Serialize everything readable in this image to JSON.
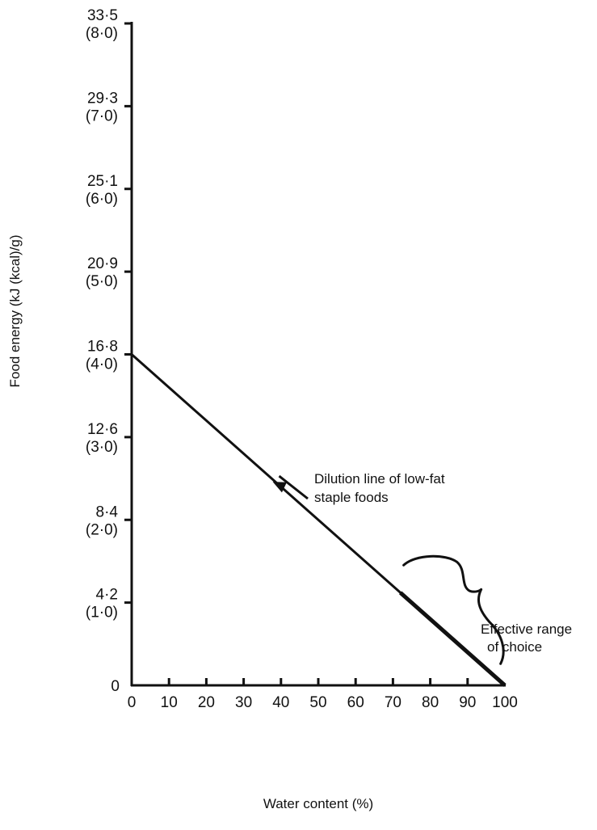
{
  "chart_data": {
    "type": "line",
    "title": "",
    "xlabel": "Water content (%)",
    "ylabel": "Food energy (kJ (kcal)/g)",
    "xlim": [
      0,
      100
    ],
    "ylim": [
      0,
      8
    ],
    "x_ticks": [
      0,
      10,
      20,
      30,
      40,
      50,
      60,
      70,
      80,
      90,
      100
    ],
    "x_tick_labels": [
      "0",
      "10",
      "20",
      "30",
      "40",
      "50",
      "60",
      "70",
      "80",
      "90",
      "100"
    ],
    "y_ticks": [
      {
        "value": 0,
        "kj": "0",
        "kcal": ""
      },
      {
        "value": 1,
        "kj": "4·2",
        "kcal": "(1·0)"
      },
      {
        "value": 2,
        "kj": "8·4",
        "kcal": "(2·0)"
      },
      {
        "value": 3,
        "kj": "12·6",
        "kcal": "(3·0)"
      },
      {
        "value": 4,
        "kj": "16·8",
        "kcal": "(4·0)"
      },
      {
        "value": 5,
        "kj": "20·9",
        "kcal": "(5·0)"
      },
      {
        "value": 6,
        "kj": "25·1",
        "kcal": "(6·0)"
      },
      {
        "value": 7,
        "kj": "29·3",
        "kcal": "(7·0)"
      },
      {
        "value": 8,
        "kj": "33·5",
        "kcal": "(8·0)"
      }
    ],
    "grid": false,
    "series": [
      {
        "x": [
          0,
          100
        ],
        "y": [
          4,
          0
        ],
        "color": "#111111"
      }
    ],
    "effective_range": [
      72,
      100
    ],
    "annotations": {
      "dilution_line_line1": "Dilution line of low-fat",
      "dilution_line_line2": "staple foods",
      "effective_range_line1": "Effective range",
      "effective_range_line2": "of choice",
      "dilution_point": {
        "x": 38,
        "y": 2.48
      },
      "range_brace_x": [
        72,
        100
      ]
    }
  }
}
